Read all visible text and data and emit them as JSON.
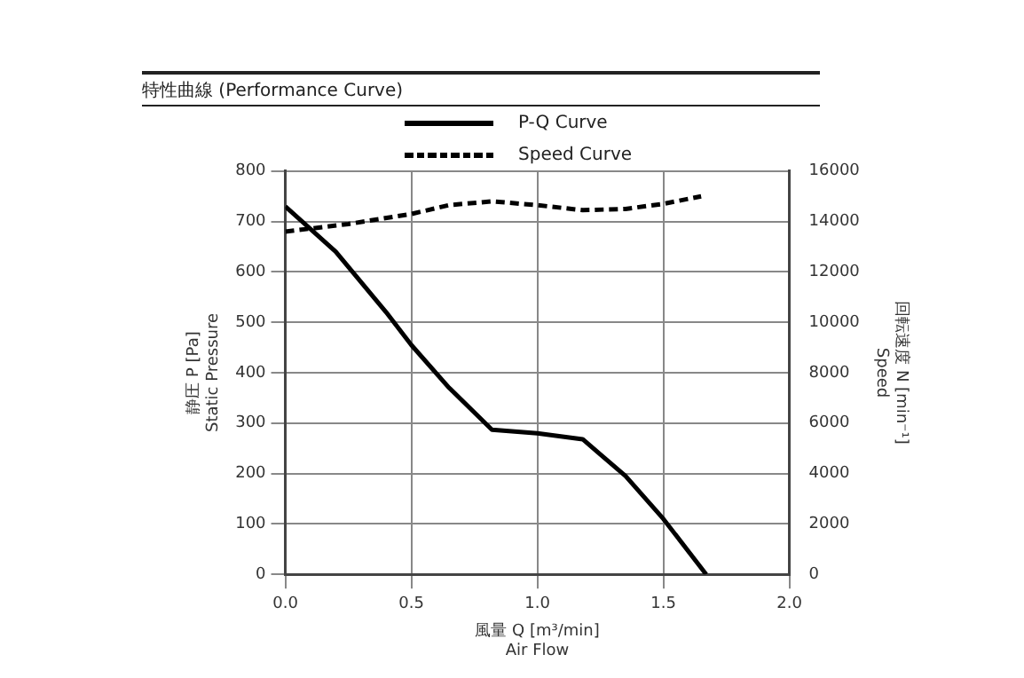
{
  "chart_data": {
    "type": "line",
    "title": "特性曲線 (Performance Curve)",
    "xlabel": "風量 Q [m³/min]\nAir Flow",
    "ylabel": "静圧 P [Pa]\nStatic Pressure",
    "y2label": "回転速度 N [min⁻¹]\nSpeed",
    "xlim": [
      0,
      2
    ],
    "xticks": [
      {
        "value": 0,
        "label": "0.0"
      },
      0.5,
      {
        "value": 1,
        "label": "1.0"
      },
      1.5,
      {
        "value": 2,
        "label": "2.0"
      }
    ],
    "ylim": [
      0,
      800
    ],
    "yticks": [
      0,
      100,
      200,
      300,
      400,
      500,
      600,
      700,
      800
    ],
    "y2lim": [
      0,
      16000
    ],
    "y2ticks": [
      0,
      2000,
      4000,
      6000,
      8000,
      10000,
      12000,
      14000,
      16000
    ],
    "grid": true,
    "legend": "top",
    "marker": "none",
    "series": [
      {
        "name": "P-Q Curve",
        "color": "#000000",
        "line_style": "solid",
        "x": [
          0,
          0.2,
          0.4,
          0.5,
          0.65,
          0.82,
          1.0,
          1.18,
          1.35,
          1.5,
          1.67
        ],
        "values": [
          730,
          640,
          520,
          455,
          370,
          287,
          280,
          268,
          195,
          110,
          0
        ]
      },
      {
        "name": "Speed Curve",
        "color": "#000000",
        "line_style": "dashed",
        "axis": "y2",
        "x": [
          0,
          0.25,
          0.5,
          0.65,
          0.82,
          1.0,
          1.18,
          1.35,
          1.5,
          1.65
        ],
        "values": [
          13600,
          13900,
          14300,
          14650,
          14800,
          14650,
          14450,
          14500,
          14700,
          15000
        ]
      }
    ]
  }
}
